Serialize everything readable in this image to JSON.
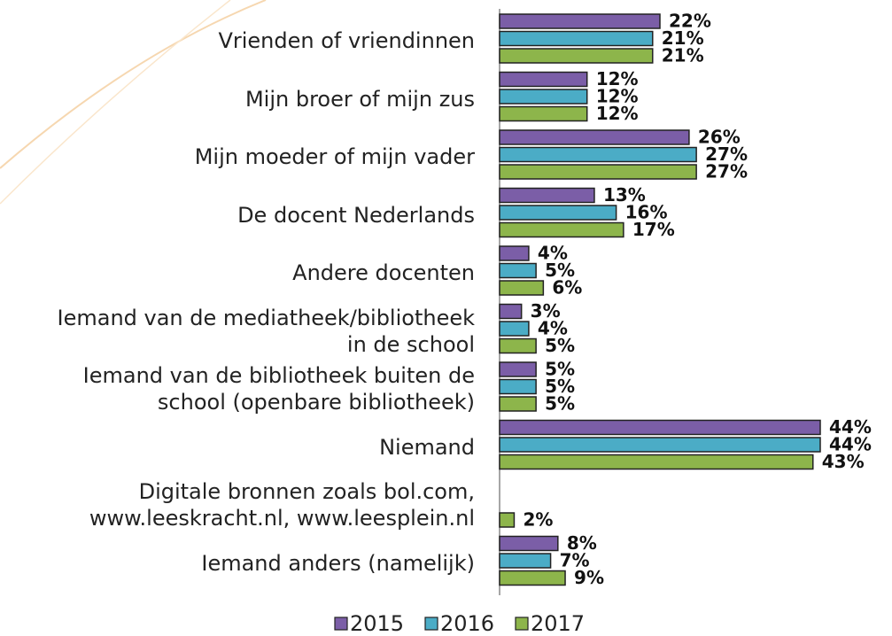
{
  "chart_data": {
    "type": "bar",
    "orientation": "horizontal",
    "categories": [
      "Vrienden of vriendinnen",
      "Mijn broer of mijn zus",
      "Mijn moeder of mijn vader",
      "De docent Nederlands",
      "Andere docenten",
      "Iemand van de mediatheek/bibliotheek\nin de school",
      "Iemand van de bibliotheek buiten de\nschool (openbare bibliotheek)",
      "Niemand",
      "Digitale bronnen zoals bol.com,\nwww.leeskracht.nl, www.leesplein.nl",
      "Iemand anders (namelijk)"
    ],
    "series": [
      {
        "name": "2015",
        "color": "#7b5ea7",
        "values": [
          22,
          12,
          26,
          13,
          4,
          3,
          5,
          44,
          null,
          8
        ],
        "value_labels": [
          "22%",
          "12%",
          "26%",
          "13%",
          "4%",
          "3%",
          "5%",
          "44%",
          null,
          "8%"
        ]
      },
      {
        "name": "2016",
        "color": "#4bacc6",
        "values": [
          21,
          12,
          27,
          16,
          5,
          4,
          5,
          44,
          null,
          7
        ],
        "value_labels": [
          "21%",
          "12%",
          "27%",
          "16%",
          "5%",
          "4%",
          "5%",
          "44%",
          null,
          "7%"
        ]
      },
      {
        "name": "2017",
        "color": "#8db54b",
        "values": [
          21,
          12,
          27,
          17,
          6,
          5,
          5,
          43,
          2,
          9
        ],
        "value_labels": [
          "21%",
          "12%",
          "27%",
          "17%",
          "6%",
          "5%",
          "5%",
          "43%",
          "2%",
          "9%"
        ]
      }
    ],
    "legend": "bottom"
  }
}
